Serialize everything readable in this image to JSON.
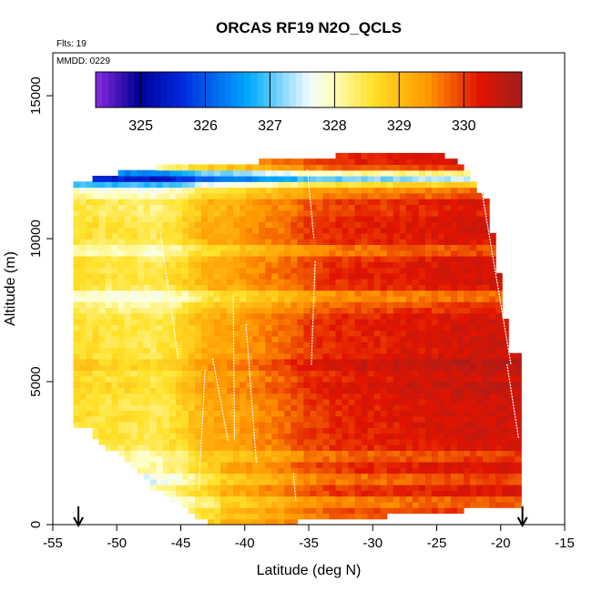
{
  "chart_data": {
    "type": "heatmap",
    "title": "ORCAS RF19 N2O_QCLS",
    "annotations": [
      "Flts: 19",
      "MMDD: 0229"
    ],
    "xlabel": "Latitude (deg N)",
    "ylabel": "Altitude (m)",
    "xlim": [
      -55,
      -15
    ],
    "ylim": [
      0,
      16500
    ],
    "xticks": [
      -55,
      -50,
      -45,
      -40,
      -35,
      -30,
      -25,
      -20,
      -15
    ],
    "yticks": [
      0,
      5000,
      10000,
      15000
    ],
    "colorbar": {
      "range": [
        324.3,
        330.9
      ],
      "ticks": [
        325,
        326,
        327,
        328,
        329,
        330
      ],
      "placement": "top-inside"
    },
    "flight_endpoints_lat": [
      -53.0,
      -18.3
    ],
    "grid": false,
    "columns": [
      {
        "lat": -52.6,
        "alt_min": 3500,
        "alt_max": 12000,
        "value": 328.6
      },
      {
        "lat": -51.0,
        "alt_min": 2800,
        "alt_max": 12200,
        "value": 328.5
      },
      {
        "lat": -49.0,
        "alt_min": 2200,
        "alt_max": 12400,
        "value": 328.5
      },
      {
        "lat": -47.0,
        "alt_min": 1200,
        "alt_max": 12500,
        "value": 328.4
      },
      {
        "lat": -45.0,
        "alt_min": 700,
        "alt_max": 12600,
        "value": 328.7
      },
      {
        "lat": -43.0,
        "alt_min": 100,
        "alt_max": 12600,
        "value": 329.2
      },
      {
        "lat": -41.0,
        "alt_min": 0,
        "alt_max": 12600,
        "value": 329.3
      },
      {
        "lat": -39.0,
        "alt_min": 0,
        "alt_max": 12700,
        "value": 329.5
      },
      {
        "lat": -37.0,
        "alt_min": 0,
        "alt_max": 12700,
        "value": 329.7
      },
      {
        "lat": -35.0,
        "alt_min": 200,
        "alt_max": 12800,
        "value": 330.0
      },
      {
        "lat": -33.0,
        "alt_min": 300,
        "alt_max": 12900,
        "value": 330.1
      },
      {
        "lat": -31.0,
        "alt_min": 300,
        "alt_max": 13000,
        "value": 330.2
      },
      {
        "lat": -29.0,
        "alt_min": 300,
        "alt_max": 13000,
        "value": 330.2
      },
      {
        "lat": -27.0,
        "alt_min": 400,
        "alt_max": 13000,
        "value": 330.3
      },
      {
        "lat": -25.0,
        "alt_min": 400,
        "alt_max": 13000,
        "value": 330.3
      },
      {
        "lat": -23.0,
        "alt_min": 500,
        "alt_max": 12600,
        "value": 330.4
      },
      {
        "lat": -21.0,
        "alt_min": 600,
        "alt_max": 11200,
        "value": 330.4
      },
      {
        "lat": -19.2,
        "alt_min": 600,
        "alt_max": 6000,
        "value": 330.4
      }
    ],
    "layer_adjustments": [
      {
        "alt": 12200,
        "delta": -2.3
      },
      {
        "alt": 12000,
        "delta": -1.4
      },
      {
        "alt": 11600,
        "delta": -0.6
      },
      {
        "alt": 11000,
        "delta": -0.2
      },
      {
        "alt": 9600,
        "delta": -0.6
      },
      {
        "alt": 8000,
        "delta": -0.8
      },
      {
        "alt": 7600,
        "delta": -0.3
      },
      {
        "alt": 5600,
        "delta": 0.3
      },
      {
        "alt": 4800,
        "delta": 0.2
      },
      {
        "alt": 2400,
        "delta": -0.5
      },
      {
        "alt": 1600,
        "delta": -0.6
      },
      {
        "alt": 800,
        "delta": -0.7
      },
      {
        "alt": 300,
        "delta": -0.4
      }
    ]
  }
}
